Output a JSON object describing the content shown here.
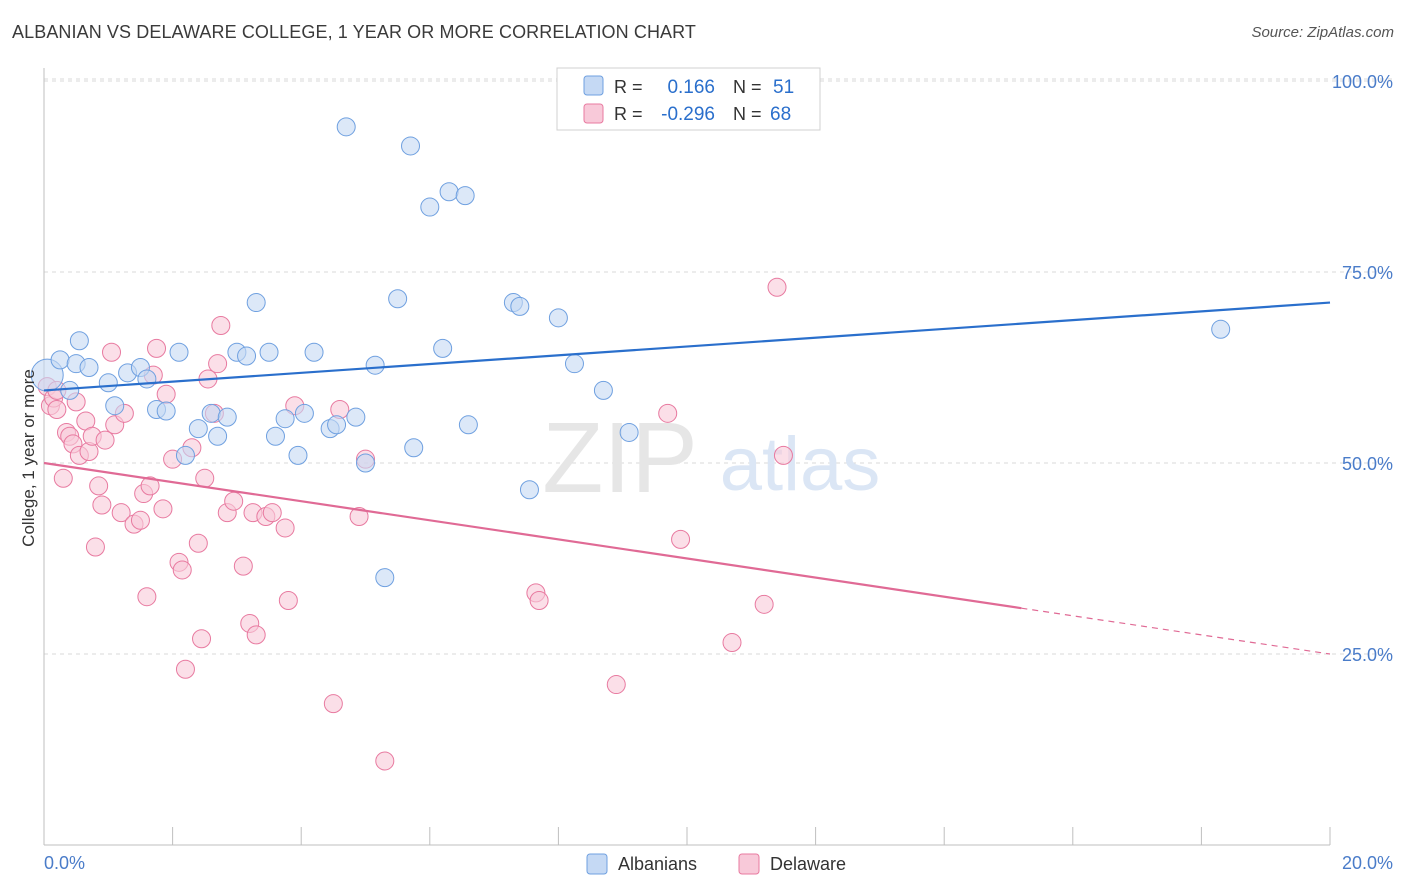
{
  "title": "ALBANIAN VS DELAWARE COLLEGE, 1 YEAR OR MORE CORRELATION CHART",
  "source": "Source: ZipAtlas.com",
  "watermark": {
    "zip": "ZIP",
    "atlas": "atlas"
  },
  "colors": {
    "blue": "#6fa0e0",
    "blue_fill": "#c5d9f4",
    "blue_line": "#2a6fcc",
    "pink": "#e87aa0",
    "pink_fill": "#f8c9d9",
    "pink_line": "#e06a95",
    "axis_label": "#4a7cc9",
    "grid": "#d9d9d9"
  },
  "legend_top": [
    {
      "r_label": "R =",
      "r_value": "0.166",
      "n_label": "N =",
      "n_value": "51"
    },
    {
      "r_label": "R =",
      "r_value": "-0.296",
      "n_label": "N =",
      "n_value": "68"
    }
  ],
  "chart_data": {
    "type": "scatter",
    "title": "ALBANIAN VS DELAWARE COLLEGE, 1 YEAR OR MORE CORRELATION CHART",
    "xlabel": "",
    "ylabel": "College, 1 year or more",
    "xlim": [
      0,
      20
    ],
    "ylim": [
      0,
      105
    ],
    "x_tick_labels": [
      "0.0%",
      "20.0%"
    ],
    "y_ticks": [
      25,
      50,
      75,
      100
    ],
    "y_tick_labels": [
      "25.0%",
      "50.0%",
      "75.0%",
      "100.0%"
    ],
    "grid": true,
    "legend_position": "bottom-center",
    "series": [
      {
        "name": "Albanians",
        "color": "#6fa0e0",
        "trend": {
          "x": [
            0,
            20
          ],
          "y": [
            59.5,
            71.0
          ],
          "solid_until": 20
        },
        "points": [
          [
            0.05,
            61.5
          ],
          [
            0.25,
            63.5
          ],
          [
            0.4,
            59.5
          ],
          [
            0.55,
            66.0
          ],
          [
            0.5,
            63.0
          ],
          [
            0.7,
            62.5
          ],
          [
            1.0,
            60.5
          ],
          [
            1.1,
            57.5
          ],
          [
            1.3,
            61.8
          ],
          [
            1.5,
            62.5
          ],
          [
            1.6,
            61.0
          ],
          [
            1.75,
            57.0
          ],
          [
            1.9,
            56.8
          ],
          [
            2.1,
            64.5
          ],
          [
            2.2,
            51.0
          ],
          [
            2.4,
            54.5
          ],
          [
            2.6,
            56.5
          ],
          [
            2.7,
            53.5
          ],
          [
            2.85,
            56.0
          ],
          [
            3.0,
            64.5
          ],
          [
            3.15,
            64.0
          ],
          [
            3.3,
            71.0
          ],
          [
            3.5,
            64.5
          ],
          [
            3.6,
            53.5
          ],
          [
            3.75,
            55.8
          ],
          [
            3.95,
            51.0
          ],
          [
            4.05,
            56.5
          ],
          [
            4.2,
            64.5
          ],
          [
            4.45,
            54.5
          ],
          [
            4.55,
            55.0
          ],
          [
            4.7,
            94.0
          ],
          [
            4.85,
            56.0
          ],
          [
            5.0,
            50.0
          ],
          [
            5.15,
            62.8
          ],
          [
            5.3,
            35.0
          ],
          [
            5.5,
            71.5
          ],
          [
            5.7,
            91.5
          ],
          [
            5.75,
            52.0
          ],
          [
            6.0,
            83.5
          ],
          [
            6.2,
            65.0
          ],
          [
            6.3,
            85.5
          ],
          [
            6.55,
            85.0
          ],
          [
            6.6,
            55.0
          ],
          [
            7.3,
            71.0
          ],
          [
            7.4,
            70.5
          ],
          [
            7.55,
            46.5
          ],
          [
            8.0,
            69.0
          ],
          [
            8.25,
            63.0
          ],
          [
            8.7,
            59.5
          ],
          [
            9.1,
            54.0
          ],
          [
            18.3,
            67.5
          ]
        ]
      },
      {
        "name": "Delaware",
        "color": "#e87aa0",
        "trend": {
          "x": [
            0,
            20
          ],
          "y": [
            50.0,
            25.0
          ],
          "solid_until": 15.2
        },
        "points": [
          [
            0.05,
            60.0
          ],
          [
            0.1,
            57.5
          ],
          [
            0.15,
            58.5
          ],
          [
            0.2,
            57.0
          ],
          [
            0.3,
            48.0
          ],
          [
            0.35,
            54.0
          ],
          [
            0.4,
            53.5
          ],
          [
            0.45,
            52.5
          ],
          [
            0.5,
            58.0
          ],
          [
            0.55,
            51.0
          ],
          [
            0.65,
            55.5
          ],
          [
            0.7,
            51.5
          ],
          [
            0.75,
            53.5
          ],
          [
            0.8,
            39.0
          ],
          [
            0.85,
            47.0
          ],
          [
            0.9,
            44.5
          ],
          [
            0.95,
            53.0
          ],
          [
            1.05,
            64.5
          ],
          [
            1.1,
            55.0
          ],
          [
            1.2,
            43.5
          ],
          [
            1.25,
            56.5
          ],
          [
            1.4,
            42.0
          ],
          [
            1.5,
            42.5
          ],
          [
            1.55,
            46.0
          ],
          [
            1.6,
            32.5
          ],
          [
            1.65,
            47.0
          ],
          [
            1.7,
            61.5
          ],
          [
            1.75,
            65.0
          ],
          [
            1.85,
            44.0
          ],
          [
            1.9,
            59.0
          ],
          [
            2.0,
            50.5
          ],
          [
            2.1,
            37.0
          ],
          [
            2.15,
            36.0
          ],
          [
            2.2,
            23.0
          ],
          [
            2.3,
            52.0
          ],
          [
            2.4,
            39.5
          ],
          [
            2.45,
            27.0
          ],
          [
            2.5,
            48.0
          ],
          [
            2.55,
            61.0
          ],
          [
            2.65,
            56.5
          ],
          [
            2.7,
            63.0
          ],
          [
            2.75,
            68.0
          ],
          [
            2.85,
            43.5
          ],
          [
            2.95,
            45.0
          ],
          [
            3.1,
            36.5
          ],
          [
            3.2,
            29.0
          ],
          [
            3.25,
            43.5
          ],
          [
            3.3,
            27.5
          ],
          [
            3.45,
            43.0
          ],
          [
            3.55,
            43.5
          ],
          [
            3.75,
            41.5
          ],
          [
            3.8,
            32.0
          ],
          [
            3.9,
            57.5
          ],
          [
            4.6,
            57.0
          ],
          [
            4.5,
            18.5
          ],
          [
            4.9,
            43.0
          ],
          [
            5.0,
            50.5
          ],
          [
            5.3,
            11.0
          ],
          [
            7.65,
            33.0
          ],
          [
            7.7,
            32.0
          ],
          [
            8.9,
            21.0
          ],
          [
            9.7,
            56.5
          ],
          [
            9.9,
            40.0
          ],
          [
            10.7,
            26.5
          ],
          [
            11.2,
            31.5
          ],
          [
            11.4,
            73.0
          ],
          [
            11.5,
            51.0
          ],
          [
            0.2,
            59.5
          ]
        ]
      }
    ]
  }
}
